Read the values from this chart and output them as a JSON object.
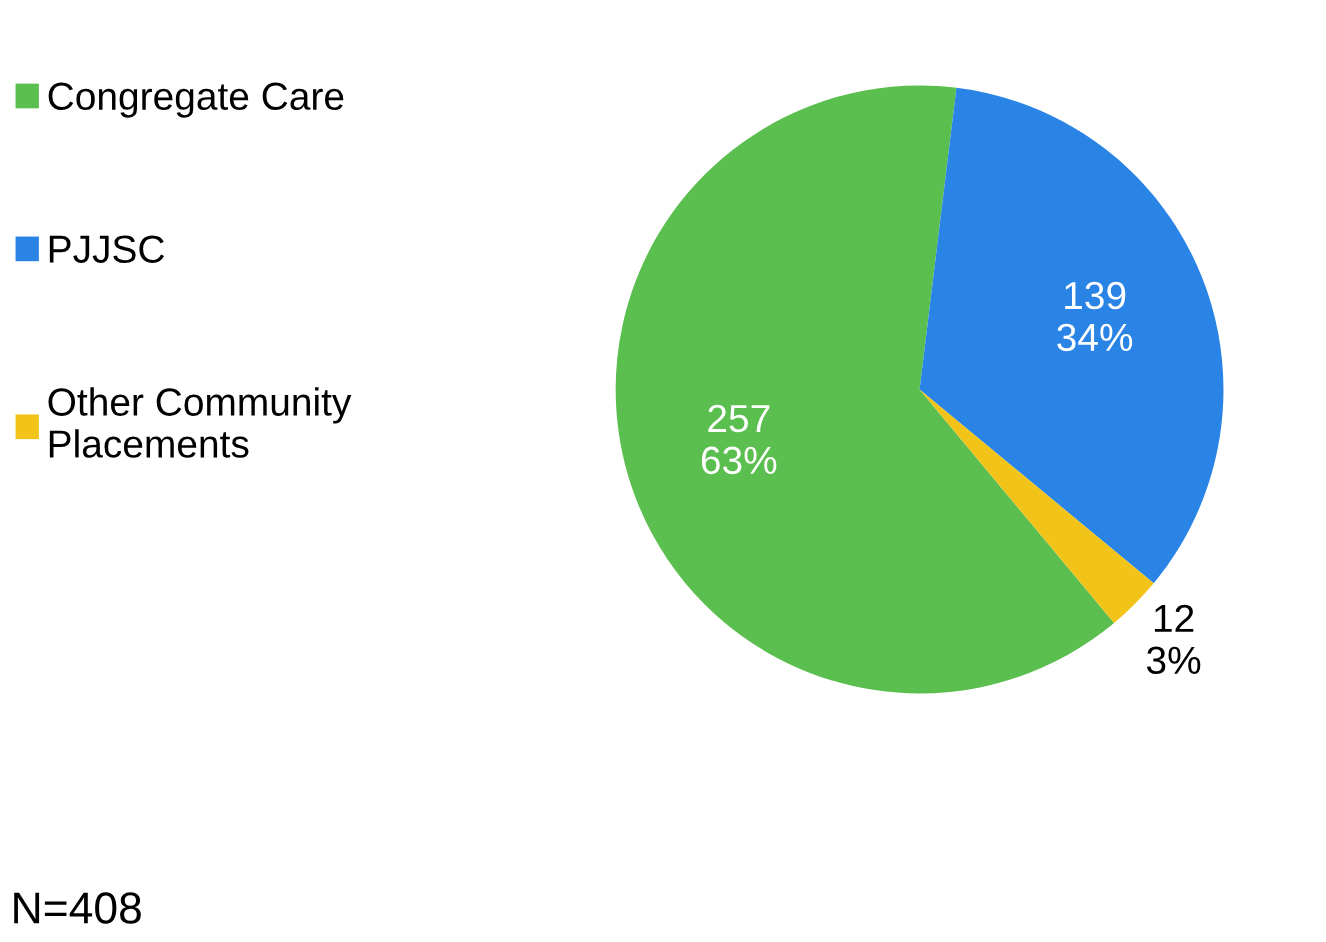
{
  "chart_data": {
    "type": "pie",
    "categories": [
      "Congregate Care",
      "PJJSC",
      "Other Community Placements"
    ],
    "values": [
      257,
      139,
      12
    ],
    "colors": [
      "#5bbf4f",
      "#2a84e6",
      "#f2c419"
    ],
    "value_labels": [
      "257\n63%",
      "139\n34%",
      "12\n3%"
    ],
    "legend": "left",
    "annotations": [
      "N=408"
    ]
  }
}
